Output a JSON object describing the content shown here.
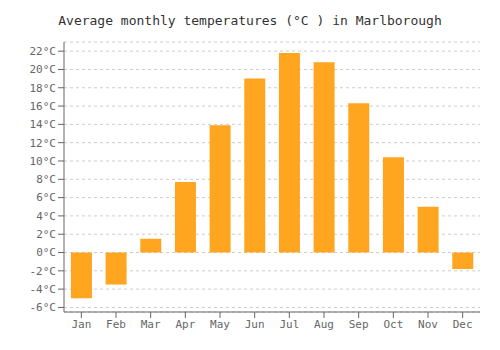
{
  "chart_data": {
    "type": "bar",
    "title": "Average monthly temperatures (°C ) in Marlborough",
    "categories": [
      "Jan",
      "Feb",
      "Mar",
      "Apr",
      "May",
      "Jun",
      "Jul",
      "Aug",
      "Sep",
      "Oct",
      "Nov",
      "Dec"
    ],
    "values": [
      -5.0,
      -3.5,
      1.5,
      7.7,
      13.9,
      19.0,
      21.8,
      20.8,
      16.3,
      10.4,
      5.0,
      -1.8
    ],
    "color": "#FFA520",
    "ylim": [
      -6.5,
      23.0
    ],
    "yticks": [
      {
        "value": -6,
        "label": "-6°C"
      },
      {
        "value": -4,
        "label": "-4°C"
      },
      {
        "value": -2,
        "label": "-2°C"
      },
      {
        "value": 0,
        "label": "0°C"
      },
      {
        "value": 2,
        "label": "2°C"
      },
      {
        "value": 4,
        "label": "4°C"
      },
      {
        "value": 6,
        "label": "6°C"
      },
      {
        "value": 8,
        "label": "8°C"
      },
      {
        "value": 10,
        "label": "10°C"
      },
      {
        "value": 12,
        "label": "12°C"
      },
      {
        "value": 14,
        "label": "14°C"
      },
      {
        "value": 16,
        "label": "16°C"
      },
      {
        "value": 18,
        "label": "18°C"
      },
      {
        "value": 20,
        "label": "20°C"
      },
      {
        "value": 22,
        "label": "22°C"
      }
    ],
    "grid": true
  }
}
